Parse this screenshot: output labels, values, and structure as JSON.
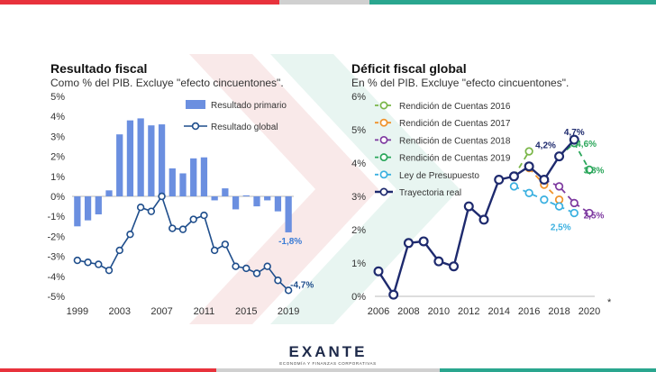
{
  "brand": {
    "name": "EXANTE",
    "tagline": "ECONOMÍA Y FINANZAS CORPORATIVAS",
    "colors": {
      "red": "#e8323c",
      "teal": "#2aa68f",
      "navy": "#1e2a4a",
      "gray": "#d0d0d0"
    }
  },
  "chart_data": [
    {
      "type": "bar+line",
      "title": "Resultado fiscal",
      "subtitle": "Como % del PIB. Excluye \"efecto cincuentones\".",
      "xlabel": "",
      "ylabel": "",
      "ylim": [
        -5,
        5
      ],
      "y_ticks": [
        5,
        4,
        3,
        2,
        1,
        0,
        -1,
        -2,
        -3,
        -4,
        -5
      ],
      "y_tick_labels": [
        "5%",
        "4%",
        "3%",
        "2%",
        "1%",
        "0%",
        "-1%",
        "-2%",
        "-3%",
        "-4%",
        "-5%"
      ],
      "x": [
        1999,
        2000,
        2001,
        2002,
        2003,
        2004,
        2005,
        2006,
        2007,
        2008,
        2009,
        2010,
        2011,
        2012,
        2013,
        2014,
        2015,
        2016,
        2017,
        2018,
        2019
      ],
      "x_tick_labels": [
        "1999",
        "2003",
        "2007",
        "2011",
        "2015",
        "2019"
      ],
      "series": [
        {
          "name": "Resultado primario",
          "kind": "bar",
          "color": "#6b8fe0",
          "values": [
            -1.5,
            -1.2,
            -0.9,
            0.3,
            3.1,
            3.8,
            3.9,
            3.55,
            3.6,
            1.4,
            1.15,
            1.9,
            1.95,
            -0.2,
            0.4,
            -0.65,
            0.05,
            -0.5,
            -0.2,
            -0.75,
            -1.8
          ]
        },
        {
          "name": "Resultado global",
          "kind": "line",
          "color": "#1f4e8c",
          "values": [
            -3.2,
            -3.3,
            -3.4,
            -3.7,
            -2.7,
            -1.9,
            -0.55,
            -0.75,
            0.0,
            -1.6,
            -1.65,
            -1.15,
            -0.95,
            -2.7,
            -2.4,
            -3.5,
            -3.6,
            -3.85,
            -3.5,
            -4.2,
            -4.7
          ]
        }
      ],
      "annotations": [
        {
          "text": "-1,8%",
          "color": "#3a7bd5",
          "x": 2019,
          "y": -1.8
        },
        {
          "text": "-4,7%",
          "color": "#1f4e8c",
          "x": 2019,
          "y": -4.7
        }
      ]
    },
    {
      "type": "line",
      "title": "Déficit fiscal global",
      "subtitle": "En % del PIB. Excluye \"efecto cincuentones\".",
      "xlabel": "",
      "ylabel": "",
      "ylim": [
        0,
        6
      ],
      "xlim": [
        2006,
        2020
      ],
      "y_ticks": [
        6,
        5,
        4,
        3,
        2,
        1,
        0
      ],
      "y_tick_labels": [
        "6%",
        "5%",
        "4%",
        "3%",
        "2%",
        "1%",
        "0%"
      ],
      "x_ticks": [
        2006,
        2008,
        2010,
        2012,
        2014,
        2016,
        2018,
        2020
      ],
      "x_tick_labels": [
        "2006",
        "2008",
        "2010",
        "2012",
        "2014",
        "2016",
        "2018",
        "2020"
      ],
      "x_note": "*",
      "series": [
        {
          "name": "Rendición de Cuentas 2016",
          "color": "#7ab648",
          "dashed": true,
          "x": [
            2015,
            2016
          ],
          "y": [
            3.6,
            4.35
          ]
        },
        {
          "name": "Rendición de Cuentas 2017",
          "color": "#f0922b",
          "dashed": true,
          "x": [
            2016,
            2017,
            2018
          ],
          "y": [
            3.85,
            3.35,
            2.9
          ]
        },
        {
          "name": "Rendición de Cuentas 2018",
          "color": "#7e3aa0",
          "dashed": true,
          "x": [
            2017,
            2018,
            2019,
            2020
          ],
          "y": [
            3.5,
            3.3,
            2.8,
            2.5
          ]
        },
        {
          "name": "Rendición de Cuentas 2019",
          "color": "#2aa65a",
          "dashed": true,
          "x": [
            2018,
            2019,
            2020
          ],
          "y": [
            4.2,
            4.6,
            3.8
          ]
        },
        {
          "name": "Ley de Presupuesto",
          "color": "#3ab0e0",
          "dashed": true,
          "x": [
            2015,
            2016,
            2017,
            2018,
            2019
          ],
          "y": [
            3.3,
            3.1,
            2.9,
            2.7,
            2.5
          ]
        },
        {
          "name": "Trayectoria real",
          "color": "#1e2a6e",
          "dashed": false,
          "x": [
            2006,
            2007,
            2008,
            2009,
            2010,
            2011,
            2012,
            2013,
            2014,
            2015,
            2016,
            2017,
            2018,
            2019
          ],
          "y": [
            0.75,
            0.05,
            1.6,
            1.65,
            1.05,
            0.9,
            2.7,
            2.3,
            3.5,
            3.6,
            3.9,
            3.5,
            4.2,
            4.7
          ]
        }
      ],
      "annotations": [
        {
          "text": "4,2%",
          "color": "#1e2a6e",
          "x": 2017.1,
          "y": 4.55
        },
        {
          "text": "4,7%",
          "color": "#1e2a6e",
          "x": 2019,
          "y": 4.95
        },
        {
          "text": "4,6%",
          "color": "#2aa65a",
          "x": 2019.8,
          "y": 4.6
        },
        {
          "text": "3,8%",
          "color": "#2aa65a",
          "x": 2020.3,
          "y": 3.8
        },
        {
          "text": "2,5%",
          "color": "#7e3aa0",
          "x": 2020.3,
          "y": 2.45
        },
        {
          "text": "2,5%",
          "color": "#3ab0e0",
          "x": 2018.1,
          "y": 2.1
        }
      ]
    }
  ]
}
